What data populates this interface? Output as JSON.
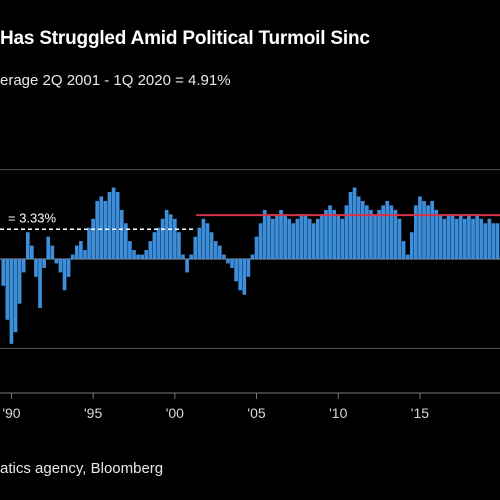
{
  "title": "Has Struggled Amid Political Turmoil Sinc",
  "subtitle": "erage 2Q 2001 - 1Q 2020 = 4.91%",
  "source": "atics agency, Bloomberg",
  "chart_data": {
    "type": "bar",
    "xlabel": "",
    "ylabel": "",
    "x_range": [
      1989.3,
      2019.9
    ],
    "ylim": [
      -15,
      15
    ],
    "y_gridlines": [
      -10,
      0,
      10
    ],
    "grid": true,
    "x_tick_labels": [
      {
        "year": 1990,
        "label": "'90"
      },
      {
        "year": 1995,
        "label": "'95"
      },
      {
        "year": 2000,
        "label": "'00"
      },
      {
        "year": 2005,
        "label": "'05"
      },
      {
        "year": 2010,
        "label": "'10"
      },
      {
        "year": 2015,
        "label": "'15"
      }
    ],
    "series": [
      {
        "color": "#3d8fdc",
        "start": 1989.5,
        "step": 0.25,
        "values": [
          -3.0,
          -6.8,
          -9.5,
          -8.2,
          -5.0,
          -1.5,
          3.0,
          1.5,
          -2.0,
          -5.5,
          -1.0,
          2.5,
          1.5,
          -0.5,
          -1.5,
          -3.5,
          -2.0,
          0.5,
          1.5,
          2.0,
          1.0,
          3.5,
          4.5,
          6.5,
          7.0,
          6.5,
          7.5,
          8.0,
          7.5,
          5.5,
          4.0,
          2.0,
          1.0,
          0.5,
          0.5,
          1.0,
          2.0,
          3.0,
          3.5,
          4.5,
          5.5,
          5.0,
          4.5,
          3.0,
          0.5,
          -1.5,
          0.5,
          2.5,
          3.5,
          4.5,
          4.0,
          3.0,
          2.0,
          1.5,
          0.5,
          -0.5,
          -1.0,
          -2.5,
          -3.5,
          -4.0,
          -2.0,
          0.5,
          2.5,
          4.0,
          5.5,
          5.0,
          4.5,
          5.0,
          5.5,
          5.0,
          4.5,
          4.0,
          4.5,
          5.0,
          5.0,
          4.5,
          4.0,
          4.5,
          5.0,
          5.5,
          6.0,
          5.5,
          5.0,
          4.5,
          6.0,
          7.5,
          8.0,
          7.0,
          6.5,
          6.0,
          5.5,
          5.0,
          5.5,
          6.0,
          6.5,
          6.0,
          5.5,
          4.5,
          2.0,
          0.5,
          3.0,
          6.0,
          7.0,
          6.5,
          6.0,
          6.5,
          5.5,
          5.0,
          4.5,
          5.0,
          5.0,
          4.5,
          5.0,
          4.5,
          5.0,
          4.5,
          5.0,
          4.5,
          4.0,
          4.5,
          4.0,
          4.0
        ]
      }
    ],
    "average_lines": [
      {
        "label": "= 3.33%",
        "value": 3.33,
        "from": 1989.3,
        "to": 2001.3,
        "color": "#ffffff",
        "dashed": true
      },
      {
        "label": "",
        "value": 4.91,
        "from": 2001.3,
        "to": 2019.9,
        "color": "#d8334a",
        "dashed": false
      }
    ]
  }
}
